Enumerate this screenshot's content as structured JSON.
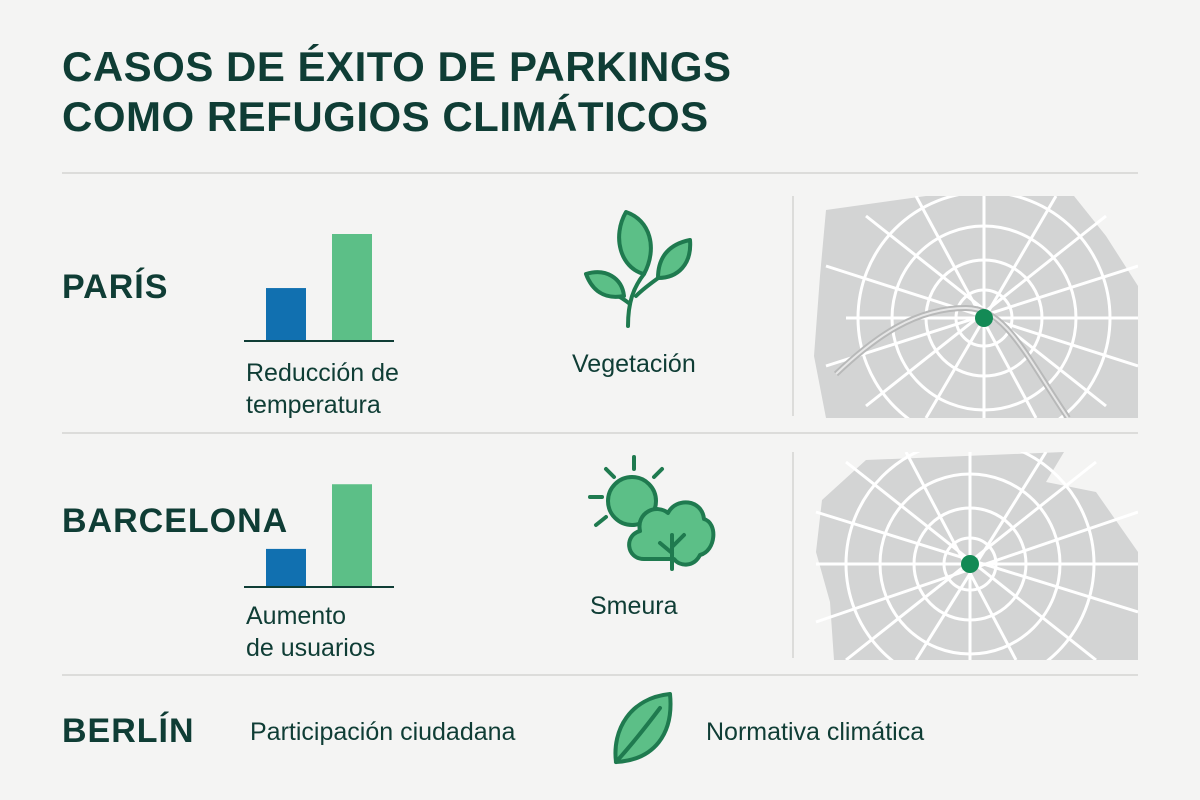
{
  "title": {
    "line1": "CASOS DE ÉXITO DE PARKINGS",
    "line2": "COMO REFUGIOS CLIMÁTICOS"
  },
  "colors": {
    "dark_green": "#0f3d35",
    "bar_blue": "#1170b0",
    "bar_green": "#5cbf87",
    "leaf_fill": "#5cbf87",
    "leaf_stroke": "#1f7a4f",
    "map_fill": "#d3d4d4",
    "map_lines": "#ffffff",
    "map_marker": "#138a55"
  },
  "rows": [
    {
      "city": "PARÍS",
      "chart_label": [
        "Reducción de",
        "temperatura"
      ],
      "icon": "plant-leaves-icon",
      "icon_label": "Vegetación",
      "map": "paris-map"
    },
    {
      "city": "BARCELONA",
      "chart_label": [
        "Aumento",
        "de usuarios"
      ],
      "icon": "sun-trees-icon",
      "icon_label": "Smeura",
      "map": "barcelona-map"
    },
    {
      "city": "BERLÍN",
      "text_left": "Participación ciudadana",
      "icon": "leaf-icon",
      "text_right": "Normativa climática"
    }
  ],
  "chart_data": [
    {
      "type": "bar",
      "categories": [
        "",
        ""
      ],
      "values": [
        49,
        100
      ],
      "ylim": [
        0,
        100
      ]
    },
    {
      "type": "bar",
      "categories": [
        "",
        ""
      ],
      "values": [
        35,
        96
      ],
      "ylim": [
        0,
        100
      ]
    }
  ]
}
